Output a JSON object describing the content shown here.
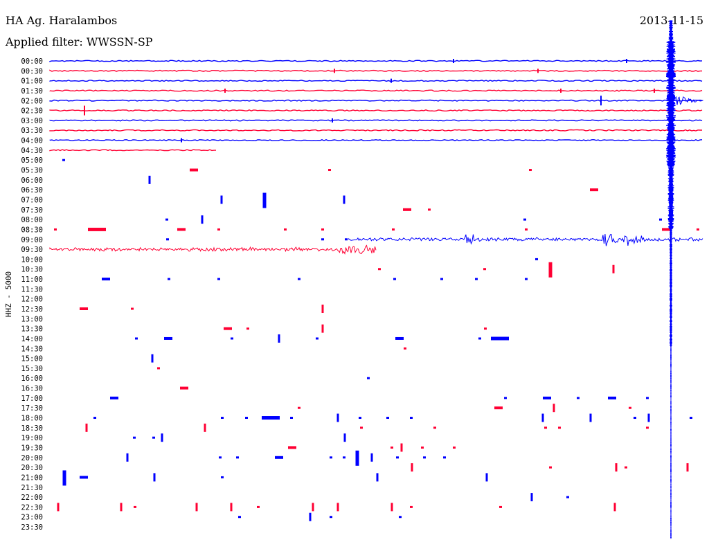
{
  "header": {
    "station": "HA Ag. Haralambos",
    "filter_label": "Applied filter: WWSSN-SP",
    "date": "2013-11-15"
  },
  "chart_data": {
    "type": "line",
    "title": "HA Ag. Haralambos",
    "ylabel": "HHZ - 5000",
    "row_interval_minutes": 30,
    "time_labels": [
      "00:00",
      "00:30",
      "01:00",
      "01:30",
      "02:00",
      "02:30",
      "03:00",
      "03:30",
      "04:00",
      "04:30",
      "05:00",
      "05:30",
      "06:00",
      "06:30",
      "07:00",
      "07:30",
      "08:00",
      "08:30",
      "09:00",
      "09:30",
      "10:00",
      "10:30",
      "11:00",
      "11:30",
      "12:00",
      "12:30",
      "13:00",
      "13:30",
      "14:00",
      "14:30",
      "15:00",
      "15:30",
      "16:00",
      "16:30",
      "17:00",
      "17:30",
      "18:00",
      "18:30",
      "19:00",
      "19:30",
      "20:00",
      "20:30",
      "21:00",
      "21:30",
      "22:00",
      "22:30",
      "23:00",
      "23:30"
    ],
    "series_colors": {
      "even_rows": "#0000ff",
      "odd_rows": "#ff0033"
    },
    "continuous_rows": [
      {
        "label": "00:00",
        "fraction": 1.0
      },
      {
        "label": "00:30",
        "fraction": 1.0
      },
      {
        "label": "01:00",
        "fraction": 1.0
      },
      {
        "label": "01:30",
        "fraction": 1.0
      },
      {
        "label": "02:00",
        "fraction": 1.0
      },
      {
        "label": "02:30",
        "fraction": 1.0
      },
      {
        "label": "03:00",
        "fraction": 1.0
      },
      {
        "label": "03:30",
        "fraction": 1.0
      },
      {
        "label": "04:00",
        "fraction": 1.0
      },
      {
        "label": "04:30",
        "fraction": 0.255
      }
    ],
    "major_event": {
      "row_label": "02:00",
      "minute_offset": 28.3,
      "description": "large earthquake signal"
    },
    "noisy_segments": [
      {
        "label": "09:00",
        "start_fraction": 0.457,
        "end_fraction": 1.0
      },
      {
        "label": "09:30",
        "start_fraction": 0.0,
        "end_fraction": 0.5
      }
    ]
  }
}
